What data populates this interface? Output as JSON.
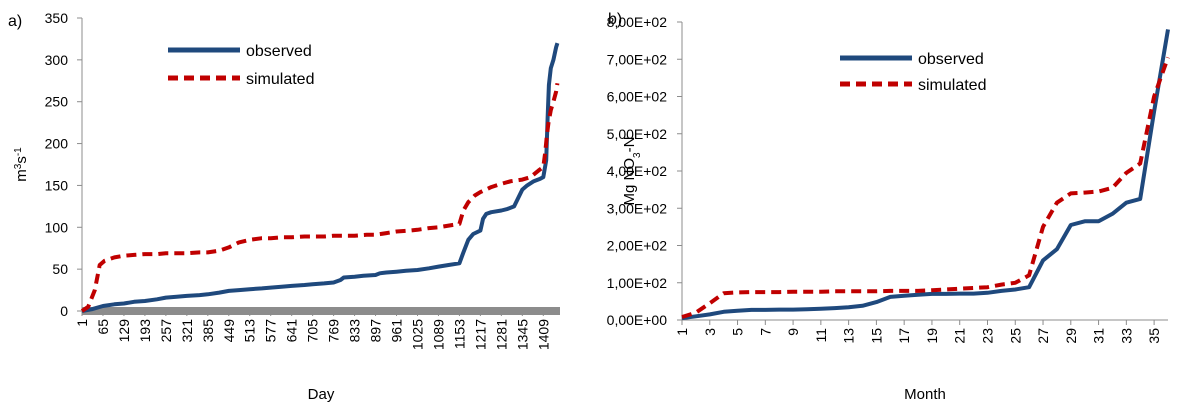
{
  "colors": {
    "observed": "#1f497d",
    "simulated": "#c00000",
    "zero_band": "#8c8c8c",
    "axis": "#8c8c8c"
  },
  "chart_data": [
    {
      "panel_label": "a)",
      "type": "line",
      "xlabel": "Day",
      "ylabel_parts": [
        "m",
        "3",
        "s",
        "-1"
      ],
      "ylim": [
        0,
        350
      ],
      "yticks": [
        0,
        50,
        100,
        150,
        200,
        250,
        300,
        350
      ],
      "ytick_labels": [
        "0",
        "50",
        "100",
        "150",
        "200",
        "250",
        "300",
        "350"
      ],
      "xlim": [
        1,
        1460
      ],
      "xticks": [
        1,
        65,
        129,
        193,
        257,
        321,
        385,
        449,
        513,
        577,
        641,
        705,
        769,
        833,
        897,
        961,
        1025,
        1089,
        1153,
        1217,
        1281,
        1345,
        1409
      ],
      "xtick_labels": [
        "1",
        "65",
        "129",
        "193",
        "257",
        "321",
        "385",
        "449",
        "513",
        "577",
        "641",
        "705",
        "769",
        "833",
        "897",
        "961",
        "1025",
        "1089",
        "1153",
        "1217",
        "1281",
        "1345",
        "1409"
      ],
      "legend": [
        "observed",
        "simulated"
      ],
      "series": [
        {
          "name": "observed",
          "style": "solid",
          "x": [
            1,
            30,
            65,
            100,
            129,
            160,
            193,
            230,
            257,
            290,
            321,
            360,
            385,
            420,
            449,
            480,
            513,
            550,
            577,
            610,
            641,
            680,
            705,
            740,
            769,
            790,
            800,
            833,
            860,
            897,
            910,
            930,
            961,
            990,
            1025,
            1060,
            1089,
            1120,
            1153,
            1165,
            1180,
            1195,
            1217,
            1225,
            1235,
            1250,
            1281,
            1300,
            1320,
            1345,
            1360,
            1380,
            1400,
            1409,
            1418,
            1422,
            1426,
            1432,
            1440,
            1448,
            1452
          ],
          "y": [
            0,
            2,
            6,
            8,
            9,
            11,
            12,
            14,
            16,
            17,
            18,
            19,
            20,
            22,
            24,
            25,
            26,
            27,
            28,
            29,
            30,
            31,
            32,
            33,
            34,
            37,
            40,
            41,
            42,
            43,
            45,
            46,
            47,
            48,
            49,
            51,
            53,
            55,
            57,
            70,
            85,
            92,
            96,
            110,
            116,
            118,
            120,
            122,
            125,
            145,
            150,
            155,
            158,
            160,
            180,
            230,
            270,
            290,
            300,
            315,
            320
          ]
        },
        {
          "name": "simulated",
          "style": "dashed",
          "x": [
            1,
            20,
            40,
            55,
            70,
            100,
            129,
            160,
            193,
            230,
            257,
            290,
            321,
            360,
            385,
            420,
            449,
            480,
            513,
            550,
            577,
            610,
            641,
            680,
            705,
            740,
            769,
            800,
            833,
            870,
            897,
            930,
            961,
            1000,
            1025,
            1060,
            1089,
            1120,
            1153,
            1165,
            1180,
            1200,
            1217,
            1250,
            1281,
            1310,
            1345,
            1370,
            1395,
            1409,
            1415,
            1420,
            1425,
            1432,
            1440,
            1448,
            1452
          ],
          "y": [
            0,
            5,
            25,
            55,
            60,
            64,
            66,
            67,
            68,
            68,
            69,
            69,
            69,
            70,
            70,
            72,
            76,
            82,
            85,
            87,
            87,
            88,
            88,
            89,
            89,
            89,
            90,
            90,
            90,
            91,
            91,
            93,
            95,
            96,
            97,
            99,
            100,
            102,
            104,
            120,
            130,
            138,
            142,
            148,
            152,
            155,
            157,
            160,
            168,
            172,
            190,
            210,
            225,
            240,
            250,
            262,
            272
          ]
        }
      ]
    },
    {
      "panel_label": "b)",
      "type": "line",
      "xlabel": "Month",
      "ylabel_parts": [
        "Mg NO",
        "3",
        "-N"
      ],
      "ylim": [
        0,
        800
      ],
      "yticks": [
        0,
        100,
        200,
        300,
        400,
        500,
        600,
        700,
        800
      ],
      "ytick_labels": [
        "0,00E+00",
        "1,00E+02",
        "2,00E+02",
        "3,00E+02",
        "4,00E+02",
        "5,00E+02",
        "6,00E+02",
        "7,00E+02",
        "8,00E+02"
      ],
      "xlim": [
        1,
        36
      ],
      "xticks": [
        1,
        3,
        5,
        7,
        9,
        11,
        13,
        15,
        17,
        19,
        21,
        23,
        25,
        27,
        29,
        31,
        33,
        35
      ],
      "xtick_labels": [
        "1",
        "3",
        "5",
        "7",
        "9",
        "11",
        "13",
        "15",
        "17",
        "19",
        "21",
        "23",
        "25",
        "27",
        "29",
        "31",
        "33",
        "35"
      ],
      "legend": [
        "observed",
        "simulated"
      ],
      "series": [
        {
          "name": "observed",
          "style": "solid",
          "x": [
            1,
            2,
            3,
            4,
            5,
            6,
            7,
            8,
            9,
            10,
            11,
            12,
            13,
            14,
            15,
            16,
            17,
            18,
            19,
            20,
            21,
            22,
            23,
            24,
            25,
            26,
            27,
            28,
            29,
            30,
            31,
            32,
            33,
            34,
            35,
            36
          ],
          "y": [
            5,
            10,
            15,
            22,
            25,
            27,
            27,
            28,
            28,
            29,
            30,
            32,
            34,
            38,
            48,
            62,
            65,
            68,
            70,
            70,
            71,
            71,
            73,
            78,
            82,
            88,
            160,
            190,
            255,
            265,
            265,
            285,
            315,
            325,
            560,
            780
          ]
        },
        {
          "name": "simulated",
          "style": "dashed",
          "x": [
            1,
            2,
            3,
            4,
            5,
            6,
            7,
            8,
            9,
            10,
            11,
            12,
            13,
            14,
            15,
            16,
            17,
            18,
            19,
            20,
            21,
            22,
            23,
            24,
            25,
            26,
            27,
            28,
            29,
            30,
            31,
            32,
            33,
            34,
            35,
            36
          ],
          "y": [
            8,
            20,
            45,
            72,
            74,
            75,
            75,
            75,
            76,
            76,
            76,
            77,
            77,
            77,
            77,
            78,
            78,
            78,
            80,
            82,
            84,
            86,
            88,
            95,
            100,
            120,
            250,
            315,
            340,
            342,
            345,
            355,
            395,
            420,
            600,
            705
          ]
        }
      ]
    }
  ]
}
